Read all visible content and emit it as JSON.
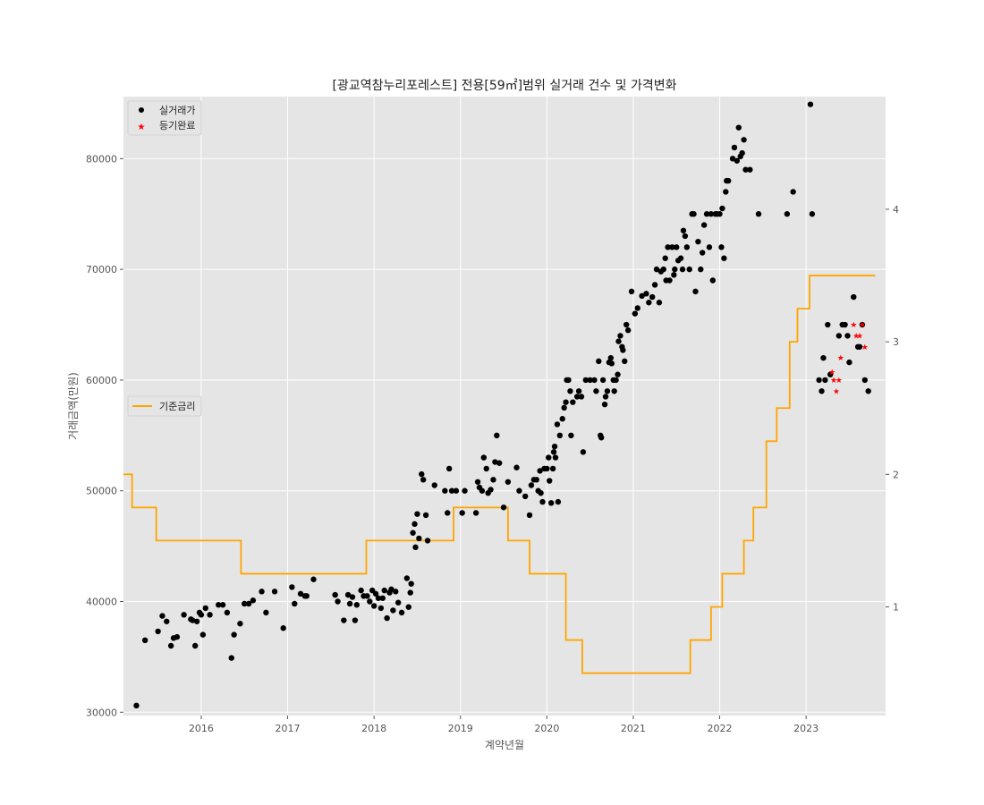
{
  "chart_data": {
    "type": "scatter",
    "title": "[광교역참누리포레스트] 전용[59㎡]범위 실거래 건수 및 가격변화",
    "xlabel": "계약년월",
    "ylabel": "거래금액(만원)",
    "xlim": [
      2015.1,
      2023.92
    ],
    "ylim": [
      29700,
      85600
    ],
    "y2lim": [
      0.18,
      4.85
    ],
    "x_ticks": [
      "2016",
      "2017",
      "2018",
      "2019",
      "2020",
      "2021",
      "2022",
      "2023"
    ],
    "y_ticks": [
      30000,
      40000,
      50000,
      60000,
      70000,
      80000
    ],
    "y2_ticks": [
      1,
      2,
      3,
      4
    ],
    "grid": true,
    "legend_upper": {
      "placement": "top-left",
      "entries": [
        "실거래가",
        "등기완료"
      ]
    },
    "legend_lower": {
      "placement": "middle-left",
      "entries": [
        "기준금리"
      ]
    },
    "colors": {
      "price": "#000000",
      "registered": "#ff0000",
      "rate": "#ffa500",
      "plot_bg": "#e5e5e5",
      "grid": "#ffffff"
    },
    "series": [
      {
        "name": "실거래가",
        "kind": "scatter",
        "points": [
          [
            2015.25,
            30600
          ],
          [
            2015.35,
            36500
          ],
          [
            2015.5,
            37300
          ],
          [
            2015.55,
            38700
          ],
          [
            2015.6,
            38200
          ],
          [
            2015.65,
            36000
          ],
          [
            2015.68,
            36700
          ],
          [
            2015.72,
            36800
          ],
          [
            2015.8,
            38800
          ],
          [
            2015.88,
            38400
          ],
          [
            2015.9,
            38300
          ],
          [
            2015.93,
            36000
          ],
          [
            2015.95,
            38200
          ],
          [
            2015.98,
            39000
          ],
          [
            2016.0,
            38800
          ],
          [
            2016.02,
            37000
          ],
          [
            2016.05,
            39400
          ],
          [
            2016.1,
            38800
          ],
          [
            2016.2,
            39700
          ],
          [
            2016.25,
            39700
          ],
          [
            2016.3,
            39000
          ],
          [
            2016.35,
            34900
          ],
          [
            2016.38,
            37000
          ],
          [
            2016.45,
            38000
          ],
          [
            2016.5,
            39800
          ],
          [
            2016.55,
            39800
          ],
          [
            2016.6,
            40100
          ],
          [
            2016.7,
            40900
          ],
          [
            2016.75,
            39000
          ],
          [
            2016.85,
            40900
          ],
          [
            2016.95,
            37600
          ],
          [
            2017.05,
            41300
          ],
          [
            2017.08,
            39800
          ],
          [
            2017.15,
            40700
          ],
          [
            2017.2,
            40500
          ],
          [
            2017.22,
            40500
          ],
          [
            2017.3,
            42000
          ],
          [
            2017.55,
            40600
          ],
          [
            2017.58,
            40000
          ],
          [
            2017.65,
            38300
          ],
          [
            2017.7,
            40600
          ],
          [
            2017.72,
            39800
          ],
          [
            2017.75,
            40400
          ],
          [
            2017.78,
            38300
          ],
          [
            2017.8,
            39700
          ],
          [
            2017.85,
            41000
          ],
          [
            2017.88,
            40500
          ],
          [
            2017.92,
            40500
          ],
          [
            2017.95,
            40000
          ],
          [
            2017.98,
            41000
          ],
          [
            2018.0,
            39600
          ],
          [
            2018.02,
            40700
          ],
          [
            2018.05,
            40300
          ],
          [
            2018.08,
            39400
          ],
          [
            2018.1,
            40300
          ],
          [
            2018.12,
            41000
          ],
          [
            2018.15,
            38500
          ],
          [
            2018.18,
            40800
          ],
          [
            2018.2,
            41100
          ],
          [
            2018.22,
            39200
          ],
          [
            2018.25,
            40900
          ],
          [
            2018.28,
            39900
          ],
          [
            2018.32,
            39000
          ],
          [
            2018.38,
            42100
          ],
          [
            2018.4,
            39500
          ],
          [
            2018.42,
            40800
          ],
          [
            2018.43,
            41600
          ],
          [
            2018.45,
            46200
          ],
          [
            2018.47,
            47000
          ],
          [
            2018.48,
            44900
          ],
          [
            2018.5,
            47900
          ],
          [
            2018.52,
            45700
          ],
          [
            2018.55,
            51500
          ],
          [
            2018.57,
            51000
          ],
          [
            2018.6,
            47800
          ],
          [
            2018.62,
            45500
          ],
          [
            2018.7,
            50500
          ],
          [
            2018.82,
            50000
          ],
          [
            2018.85,
            48000
          ],
          [
            2018.87,
            52000
          ],
          [
            2018.9,
            50000
          ],
          [
            2018.95,
            50000
          ],
          [
            2019.02,
            48000
          ],
          [
            2019.05,
            50000
          ],
          [
            2019.18,
            48000
          ],
          [
            2019.2,
            50800
          ],
          [
            2019.22,
            50300
          ],
          [
            2019.25,
            50000
          ],
          [
            2019.27,
            53000
          ],
          [
            2019.3,
            52000
          ],
          [
            2019.32,
            49800
          ],
          [
            2019.35,
            50100
          ],
          [
            2019.38,
            51000
          ],
          [
            2019.4,
            52600
          ],
          [
            2019.42,
            55000
          ],
          [
            2019.45,
            52500
          ],
          [
            2019.5,
            48500
          ],
          [
            2019.55,
            50800
          ],
          [
            2019.65,
            52100
          ],
          [
            2019.68,
            50000
          ],
          [
            2019.75,
            49500
          ],
          [
            2019.8,
            47800
          ],
          [
            2019.82,
            50500
          ],
          [
            2019.85,
            51000
          ],
          [
            2019.88,
            51000
          ],
          [
            2019.9,
            50000
          ],
          [
            2019.92,
            51800
          ],
          [
            2019.93,
            49800
          ],
          [
            2019.95,
            49000
          ],
          [
            2019.97,
            52000
          ],
          [
            2020.0,
            52000
          ],
          [
            2020.02,
            53000
          ],
          [
            2020.03,
            50900
          ],
          [
            2020.05,
            48900
          ],
          [
            2020.07,
            52000
          ],
          [
            2020.08,
            53500
          ],
          [
            2020.09,
            54000
          ],
          [
            2020.1,
            53000
          ],
          [
            2020.12,
            56000
          ],
          [
            2020.13,
            49000
          ],
          [
            2020.15,
            55000
          ],
          [
            2020.18,
            56500
          ],
          [
            2020.2,
            57500
          ],
          [
            2020.22,
            58000
          ],
          [
            2020.23,
            60000
          ],
          [
            2020.25,
            60000
          ],
          [
            2020.27,
            59000
          ],
          [
            2020.28,
            55000
          ],
          [
            2020.3,
            58000
          ],
          [
            2020.35,
            58500
          ],
          [
            2020.37,
            59000
          ],
          [
            2020.4,
            58500
          ],
          [
            2020.42,
            53500
          ],
          [
            2020.45,
            60000
          ],
          [
            2020.5,
            60000
          ],
          [
            2020.55,
            60000
          ],
          [
            2020.57,
            59000
          ],
          [
            2020.6,
            61700
          ],
          [
            2020.62,
            55000
          ],
          [
            2020.63,
            54800
          ],
          [
            2020.65,
            60000
          ],
          [
            2020.67,
            57800
          ],
          [
            2020.68,
            58500
          ],
          [
            2020.7,
            59000
          ],
          [
            2020.72,
            61600
          ],
          [
            2020.74,
            62000
          ],
          [
            2020.75,
            61500
          ],
          [
            2020.77,
            60000
          ],
          [
            2020.78,
            59000
          ],
          [
            2020.8,
            60000
          ],
          [
            2020.82,
            60500
          ],
          [
            2020.83,
            63500
          ],
          [
            2020.85,
            64000
          ],
          [
            2020.87,
            63000
          ],
          [
            2020.88,
            62700
          ],
          [
            2020.9,
            61700
          ],
          [
            2020.92,
            65000
          ],
          [
            2020.94,
            64500
          ],
          [
            2020.98,
            68000
          ],
          [
            2021.02,
            66000
          ],
          [
            2021.05,
            66500
          ],
          [
            2021.1,
            67600
          ],
          [
            2021.15,
            67800
          ],
          [
            2021.18,
            67000
          ],
          [
            2021.22,
            67500
          ],
          [
            2021.25,
            68600
          ],
          [
            2021.27,
            70000
          ],
          [
            2021.3,
            67000
          ],
          [
            2021.32,
            69800
          ],
          [
            2021.35,
            70000
          ],
          [
            2021.37,
            71000
          ],
          [
            2021.38,
            69000
          ],
          [
            2021.4,
            72000
          ],
          [
            2021.42,
            69000
          ],
          [
            2021.45,
            72000
          ],
          [
            2021.47,
            69500
          ],
          [
            2021.48,
            70000
          ],
          [
            2021.5,
            72000
          ],
          [
            2021.52,
            70800
          ],
          [
            2021.55,
            71000
          ],
          [
            2021.57,
            70000
          ],
          [
            2021.58,
            73500
          ],
          [
            2021.6,
            73000
          ],
          [
            2021.62,
            72000
          ],
          [
            2021.65,
            70000
          ],
          [
            2021.68,
            75000
          ],
          [
            2021.7,
            75000
          ],
          [
            2021.72,
            68000
          ],
          [
            2021.75,
            72500
          ],
          [
            2021.78,
            70000
          ],
          [
            2021.8,
            71500
          ],
          [
            2021.82,
            74000
          ],
          [
            2021.85,
            75000
          ],
          [
            2021.88,
            72000
          ],
          [
            2021.9,
            75000
          ],
          [
            2021.92,
            69000
          ],
          [
            2021.95,
            75000
          ],
          [
            2021.97,
            75000
          ],
          [
            2022.0,
            75000
          ],
          [
            2022.02,
            72000
          ],
          [
            2022.03,
            75500
          ],
          [
            2022.05,
            71000
          ],
          [
            2022.07,
            77000
          ],
          [
            2022.08,
            78000
          ],
          [
            2022.1,
            78000
          ],
          [
            2022.15,
            80000
          ],
          [
            2022.17,
            81000
          ],
          [
            2022.2,
            79800
          ],
          [
            2022.22,
            82800
          ],
          [
            2022.24,
            80200
          ],
          [
            2022.26,
            80500
          ],
          [
            2022.28,
            81700
          ],
          [
            2022.3,
            79000
          ],
          [
            2022.35,
            79000
          ],
          [
            2022.45,
            75000
          ],
          [
            2022.78,
            75000
          ],
          [
            2022.85,
            77000
          ],
          [
            2023.05,
            84900
          ],
          [
            2023.07,
            75000
          ],
          [
            2023.15,
            60000
          ],
          [
            2023.18,
            59000
          ],
          [
            2023.2,
            62000
          ],
          [
            2023.22,
            60000
          ],
          [
            2023.25,
            65000
          ],
          [
            2023.28,
            60500
          ],
          [
            2023.38,
            64000
          ],
          [
            2023.42,
            65000
          ],
          [
            2023.45,
            65000
          ],
          [
            2023.48,
            64000
          ],
          [
            2023.5,
            61600
          ],
          [
            2023.55,
            67500
          ],
          [
            2023.6,
            63000
          ],
          [
            2023.62,
            63000
          ],
          [
            2023.65,
            65000
          ],
          [
            2023.68,
            60000
          ],
          [
            2023.72,
            59000
          ]
        ]
      },
      {
        "name": "등기완료",
        "kind": "scatter",
        "marker": "star",
        "points": [
          [
            2023.3,
            60700
          ],
          [
            2023.32,
            60000
          ],
          [
            2023.35,
            59000
          ],
          [
            2023.38,
            60000
          ],
          [
            2023.4,
            62000
          ],
          [
            2023.55,
            65000
          ],
          [
            2023.58,
            64000
          ],
          [
            2023.62,
            64000
          ],
          [
            2023.65,
            65000
          ],
          [
            2023.68,
            63000
          ]
        ]
      },
      {
        "name": "기준금리",
        "kind": "step",
        "axis": "right",
        "points": [
          [
            2015.1,
            2.0
          ],
          [
            2015.2,
            1.75
          ],
          [
            2015.48,
            1.5
          ],
          [
            2016.46,
            1.25
          ],
          [
            2017.91,
            1.5
          ],
          [
            2018.92,
            1.75
          ],
          [
            2019.55,
            1.5
          ],
          [
            2019.8,
            1.25
          ],
          [
            2020.22,
            0.75
          ],
          [
            2020.41,
            0.5
          ],
          [
            2021.66,
            0.75
          ],
          [
            2021.9,
            1.0
          ],
          [
            2022.03,
            1.25
          ],
          [
            2022.28,
            1.5
          ],
          [
            2022.39,
            1.75
          ],
          [
            2022.54,
            2.25
          ],
          [
            2022.66,
            2.5
          ],
          [
            2022.81,
            3.0
          ],
          [
            2022.9,
            3.25
          ],
          [
            2023.04,
            3.5
          ],
          [
            2023.8,
            3.5
          ]
        ]
      }
    ]
  }
}
